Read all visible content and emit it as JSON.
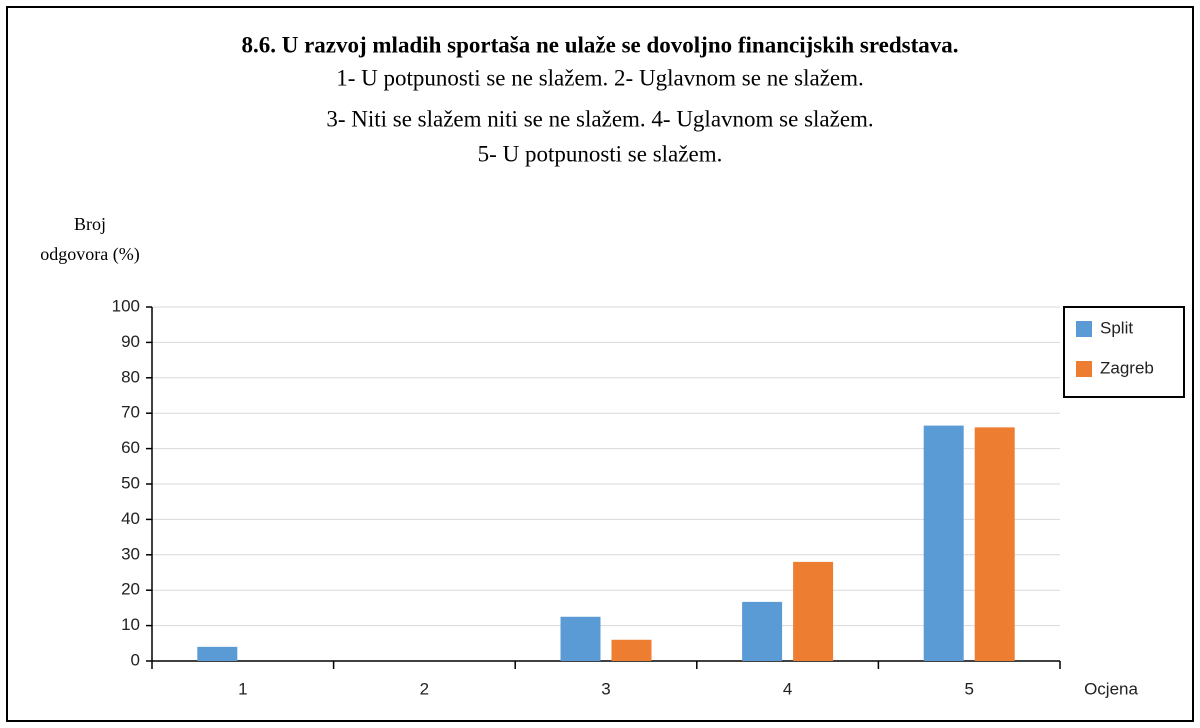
{
  "chart_data": {
    "type": "bar",
    "title": "8.6. U razvoj mladih sportaša ne ulaže se dovoljno financijskih sredstava.",
    "subtitle": [
      "1- U potpunosti se ne slažem. 2- Uglavnom se ne slažem.",
      "3- Niti se slažem niti se ne slažem. 4- Uglavnom se slažem.",
      "5- U potpunosti se slažem."
    ],
    "y_label": [
      "Broj",
      "odgovora (%)"
    ],
    "x_label": "Ocjena",
    "categories": [
      "1",
      "2",
      "3",
      "4",
      "5"
    ],
    "series": [
      {
        "name": "Split",
        "color": "#5b9bd5",
        "values": [
          4,
          0,
          12.5,
          16.7,
          66.5
        ]
      },
      {
        "name": "Zagreb",
        "color": "#ed7d31",
        "values": [
          0,
          0,
          6,
          28,
          66
        ]
      }
    ],
    "ylim": [
      0,
      100
    ],
    "yticks": [
      0,
      10,
      20,
      30,
      40,
      50,
      60,
      70,
      80,
      90,
      100
    ],
    "grid": true,
    "legend": "right"
  }
}
